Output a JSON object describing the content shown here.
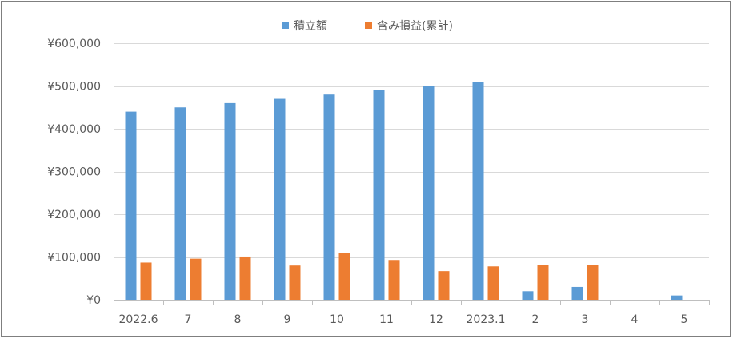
{
  "chart_data": {
    "type": "bar",
    "title": "",
    "xlabel": "",
    "ylabel": "",
    "categories": [
      "2022.6",
      "7",
      "8",
      "9",
      "10",
      "11",
      "12",
      "2023.1",
      "2",
      "3",
      "4",
      "5"
    ],
    "series": [
      {
        "name": "積立額",
        "color": "#5b9bd5",
        "values": [
          440000,
          450000,
          460000,
          470000,
          480000,
          490000,
          500000,
          510000,
          20000,
          30000,
          0,
          10000
        ]
      },
      {
        "name": "含み損益(累計)",
        "color": "#ed7d31",
        "values": [
          87000,
          96000,
          101000,
          80000,
          110000,
          93000,
          67000,
          78000,
          82000,
          82000,
          0,
          0
        ]
      }
    ],
    "ylim": [
      0,
      600000
    ],
    "yticks": [
      0,
      100000,
      200000,
      300000,
      400000,
      500000,
      600000
    ],
    "ytick_labels": [
      "¥0",
      "¥100,000",
      "¥200,000",
      "¥300,000",
      "¥400,000",
      "¥500,000",
      "¥600,000"
    ],
    "grid": true,
    "legend_position": "top-center"
  }
}
